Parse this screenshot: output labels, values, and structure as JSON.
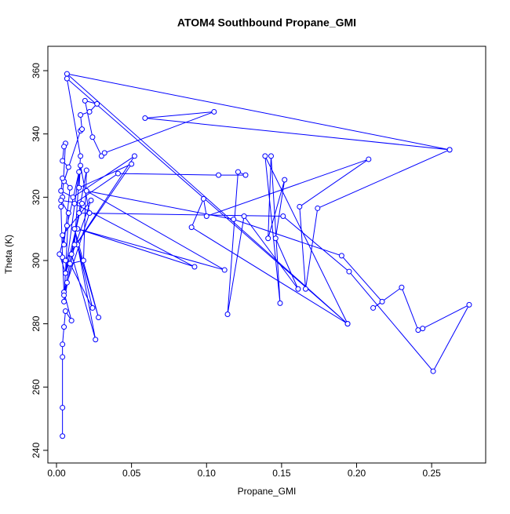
{
  "chart_data": {
    "type": "scatter-line",
    "title": "ATOM4 Southbound Propane_GMI",
    "x_label": "Propane_GMI",
    "y_label": "Theta (K)",
    "color": "#0000ff",
    "xlim": [
      -0.00575,
      0.286
    ],
    "ylim": [
      236.0,
      367.7
    ],
    "xticks": [
      {
        "value": 0,
        "label": "0.00"
      },
      {
        "value": 0.05,
        "label": "0.05"
      },
      {
        "value": 0.1,
        "label": "0.10"
      },
      {
        "value": 0.15,
        "label": "0.15"
      },
      {
        "value": 0.2,
        "label": "0.20"
      },
      {
        "value": 0.25,
        "label": "0.25"
      }
    ],
    "yticks": [
      240,
      260,
      280,
      300,
      320,
      340,
      360
    ],
    "x": [
      0.004,
      0.004,
      0.004,
      0.004,
      0.005,
      0.006,
      0.01,
      0.005,
      0.004,
      0.003,
      0.004,
      0.006,
      0.005,
      0.004,
      0.008,
      0.005,
      0.016,
      0.017,
      0.016,
      0.022,
      0.027,
      0.019,
      0.024,
      0.03,
      0.032,
      0.105,
      0.059,
      0.262,
      0.174,
      0.166,
      0.162,
      0.208,
      0.1,
      0.098,
      0.09,
      0.194,
      0.139,
      0.149,
      0.143,
      0.141,
      0.152,
      0.146,
      0.161,
      0.125,
      0.114,
      0.121,
      0.126,
      0.108,
      0.041,
      0.012,
      0.092,
      0.014,
      0.112,
      0.02,
      0.118,
      0.19,
      0.217,
      0.211,
      0.23,
      0.241,
      0.244,
      0.275,
      0.251,
      0.195,
      0.151,
      0.015,
      0.01,
      0.026,
      0.012,
      0.028,
      0.014,
      0.024,
      0.009,
      0.018,
      0.02,
      0.005,
      0.007,
      0.022,
      0.016,
      0.015,
      0.05,
      0.006,
      0.052,
      0.011,
      0.003,
      0.004,
      0.009,
      0.005,
      0.004,
      0.023,
      0.006,
      0.002,
      0.007,
      0.015,
      0.006,
      0.017,
      0.003,
      0.008,
      0.005,
      0.012,
      0.016,
      0.007,
      0.194,
      0.007,
      0.262
    ],
    "values": [
      244.5,
      253.5,
      269.5,
      273.5,
      279,
      284,
      281,
      290,
      301,
      317,
      320,
      337,
      336,
      331.5,
      329.5,
      325,
      341,
      341.5,
      346,
      347,
      349.5,
      350.5,
      339,
      333,
      334,
      347,
      345,
      335,
      316.5,
      291,
      317,
      332,
      314,
      319.5,
      310.5,
      280,
      333,
      286.5,
      333,
      307,
      325.5,
      307,
      291,
      314,
      283,
      328,
      327,
      327,
      327.5,
      318,
      298,
      310,
      297,
      322,
      313,
      301.5,
      287,
      285,
      291.5,
      278,
      278.5,
      286,
      265,
      296.5,
      314,
      315,
      302,
      275,
      310,
      282,
      305,
      285,
      299,
      300,
      328.5,
      289,
      293,
      315,
      330,
      323,
      330.5,
      300,
      333,
      320,
      322,
      326,
      323,
      305,
      308,
      319,
      296,
      302,
      311,
      328,
      296,
      318,
      319,
      315,
      287,
      305,
      333,
      357.5,
      280,
      359,
      335
    ]
  }
}
